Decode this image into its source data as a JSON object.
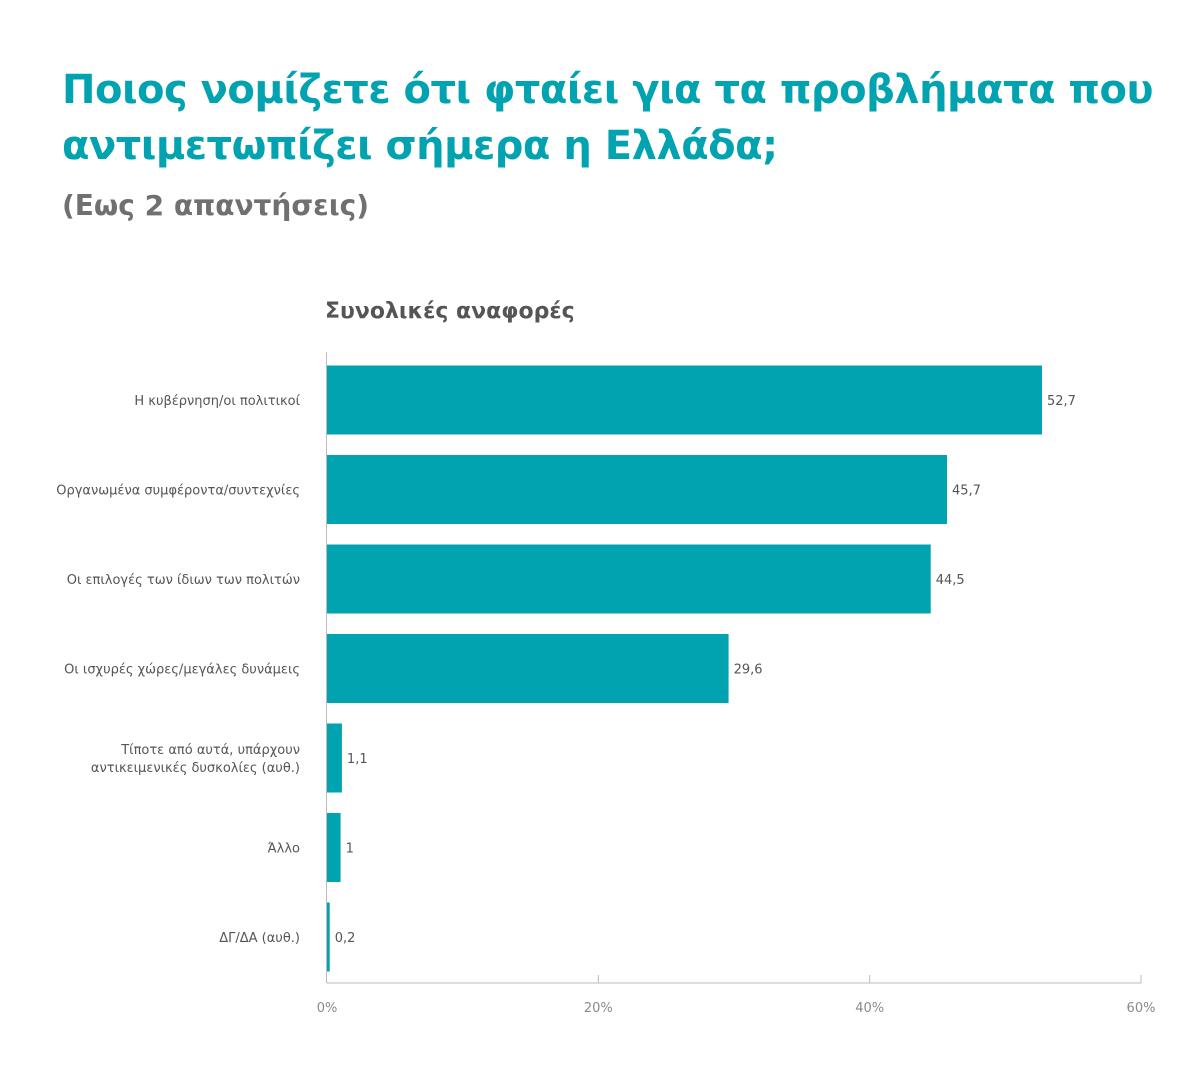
{
  "header": {
    "title": "Ποιος νομίζετε ότι φταίει για τα προβλήματα που αντιμετωπίζει σήμερα η Ελλάδα;",
    "subtitle": "(Εως 2 απαντήσεις)"
  },
  "colors": {
    "accent": "#00A3AF",
    "bar": "#00A3AF",
    "text": "#555555",
    "axis": "#bbbbbb"
  },
  "chart_data": {
    "type": "bar",
    "orientation": "horizontal",
    "title": "Συνολικές αναφορές",
    "xlabel": "",
    "ylabel": "",
    "categories": [
      [
        "Η κυβέρνηση/οι πολιτικοί"
      ],
      [
        "Οργανωμένα συμφέροντα/συντεχνίες"
      ],
      [
        "Οι επιλογές των ίδιων των πολιτών"
      ],
      [
        "Οι ισχυρές χώρες/μεγάλες δυνάμεις"
      ],
      [
        "Τίποτε από αυτά, υπάρχουν",
        "αντικειμενικές δυσκολίες (αυθ.)"
      ],
      [
        "Άλλο"
      ],
      [
        "ΔΓ/ΔΑ (αυθ.)"
      ]
    ],
    "values": [
      52.7,
      45.7,
      44.5,
      29.6,
      1.1,
      1,
      0.2
    ],
    "value_labels": [
      "52,7",
      "45,7",
      "44,5",
      "29,6",
      "1,1",
      "1",
      "0,2"
    ],
    "xlim": [
      0,
      60
    ],
    "ticks": [
      0,
      20,
      40,
      60
    ],
    "tick_labels": [
      "0%",
      "20%",
      "40%",
      "60%"
    ],
    "grid": false,
    "legend": "none"
  }
}
